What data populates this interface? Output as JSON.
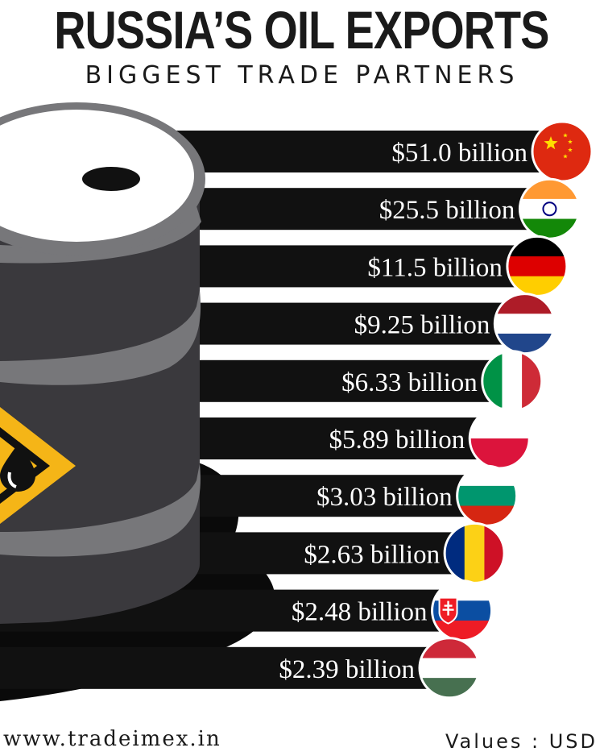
{
  "header": {
    "title": "RUSSIA’S OIL EXPORTS",
    "subtitle": "BIGGEST TRADE PARTNERS"
  },
  "footer": {
    "website": "www.tradeimex.in",
    "unit_note": "Values : USD"
  },
  "colors": {
    "bar": "#111111",
    "barrel_body": "#3a393d",
    "barrel_rim": "#77777a",
    "barrel_top": "#ffffff",
    "hazard": "#f5b517",
    "puddle": "#0a0a0a"
  },
  "chart_data": {
    "type": "bar",
    "orientation": "horizontal",
    "title": "RUSSIA’S OIL EXPORTS",
    "subtitle": "BIGGEST TRADE PARTNERS",
    "unit": "USD",
    "categories": [
      "china-flag",
      "india-flag",
      "germany-flag",
      "netherlands-flag",
      "italy-flag",
      "poland-flag",
      "bulgaria-flag",
      "romania-flag",
      "slovakia-flag",
      "hungary-flag"
    ],
    "values": [
      51.0,
      25.5,
      11.5,
      9.25,
      6.33,
      5.89,
      3.03,
      2.63,
      2.48,
      2.39
    ],
    "labels": [
      "$51.0 billion",
      "$25.5 billion",
      "$11.5 billion",
      "$9.25 billion",
      "$6.33 billion",
      "$5.89 billion",
      "$3.03 billion",
      "$2.63 billion",
      "$2.48 billion",
      "$2.39 billion"
    ]
  }
}
